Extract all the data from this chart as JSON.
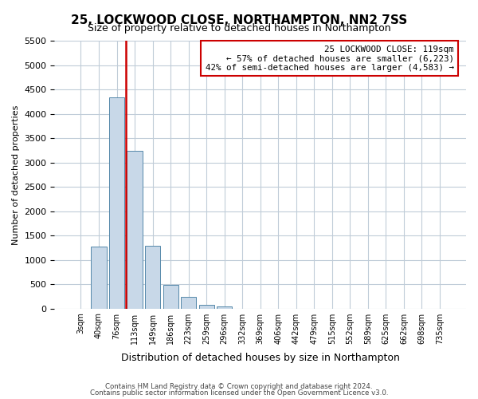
{
  "title": "25, LOCKWOOD CLOSE, NORTHAMPTON, NN2 7SS",
  "subtitle": "Size of property relative to detached houses in Northampton",
  "xlabel": "Distribution of detached houses by size in Northampton",
  "ylabel": "Number of detached properties",
  "bar_labels": [
    "3sqm",
    "40sqm",
    "76sqm",
    "113sqm",
    "149sqm",
    "186sqm",
    "223sqm",
    "259sqm",
    "296sqm",
    "332sqm",
    "369sqm",
    "406sqm",
    "442sqm",
    "479sqm",
    "515sqm",
    "552sqm",
    "589sqm",
    "625sqm",
    "662sqm",
    "698sqm",
    "735sqm"
  ],
  "bar_values": [
    0,
    1270,
    4350,
    3250,
    1290,
    480,
    240,
    80,
    40,
    0,
    0,
    0,
    0,
    0,
    0,
    0,
    0,
    0,
    0,
    0,
    0
  ],
  "bar_color": "#c8d8e8",
  "bar_edge_color": "#5588aa",
  "vline_color": "#cc0000",
  "vline_x": 2.5,
  "ylim": [
    0,
    5500
  ],
  "yticks": [
    0,
    500,
    1000,
    1500,
    2000,
    2500,
    3000,
    3500,
    4000,
    4500,
    5000,
    5500
  ],
  "annotation_title": "25 LOCKWOOD CLOSE: 119sqm",
  "annotation_line1": "← 57% of detached houses are smaller (6,223)",
  "annotation_line2": "42% of semi-detached houses are larger (4,583) →",
  "annotation_box_color": "#ffffff",
  "annotation_box_edge": "#cc0000",
  "footer1": "Contains HM Land Registry data © Crown copyright and database right 2024.",
  "footer2": "Contains public sector information licensed under the Open Government Licence v3.0.",
  "bg_color": "#ffffff",
  "grid_color": "#c0ccd8"
}
